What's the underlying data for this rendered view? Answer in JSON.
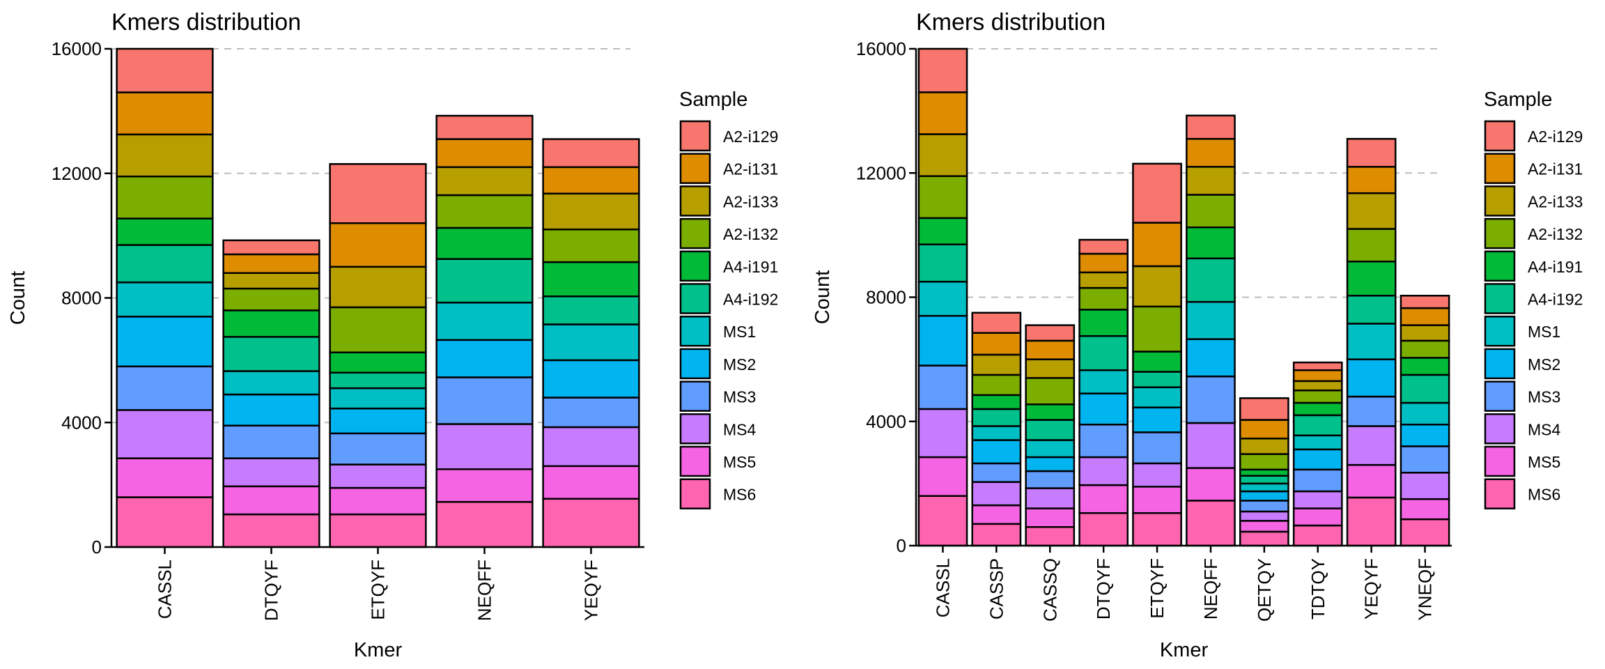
{
  "samples": [
    "A2-i129",
    "A2-i131",
    "A2-i133",
    "A2-i132",
    "A4-i191",
    "A4-i192",
    "MS1",
    "MS2",
    "MS3",
    "MS4",
    "MS5",
    "MS6"
  ],
  "colors": [
    "#F8766D",
    "#DE8C00",
    "#B79F00",
    "#7CAE00",
    "#00BA38",
    "#00C08B",
    "#00BFC4",
    "#00B4F0",
    "#619CFF",
    "#C77CFF",
    "#F564E3",
    "#FF64B0"
  ],
  "chart_data": [
    {
      "type": "bar",
      "stacked": true,
      "title": "Kmers distribution",
      "xlabel": "Kmer",
      "ylabel": "Count",
      "ylim": [
        0,
        16000
      ],
      "yticks": [
        0,
        4000,
        8000,
        12000,
        16000
      ],
      "legend_title": "Sample",
      "legend_position": "right",
      "categories": [
        "CASSL",
        "DTQYF",
        "ETQYF",
        "NEQFF",
        "YEQYF"
      ],
      "series": [
        {
          "name": "A2-i129",
          "values": [
            1400,
            450,
            1900,
            750,
            900
          ]
        },
        {
          "name": "A2-i131",
          "values": [
            1350,
            600,
            1400,
            900,
            850
          ]
        },
        {
          "name": "A2-i133",
          "values": [
            1350,
            500,
            1300,
            900,
            1150
          ]
        },
        {
          "name": "A2-i132",
          "values": [
            1350,
            700,
            1450,
            1050,
            1050
          ]
        },
        {
          "name": "A4-i191",
          "values": [
            850,
            850,
            650,
            1000,
            1100
          ]
        },
        {
          "name": "A4-i192",
          "values": [
            1200,
            1100,
            500,
            1400,
            900
          ]
        },
        {
          "name": "MS1",
          "values": [
            1100,
            750,
            650,
            1200,
            1150
          ]
        },
        {
          "name": "MS2",
          "values": [
            1600,
            1000,
            800,
            1200,
            1200
          ]
        },
        {
          "name": "MS3",
          "values": [
            1400,
            1050,
            1000,
            1500,
            950
          ]
        },
        {
          "name": "MS4",
          "values": [
            1550,
            900,
            750,
            1450,
            1250
          ]
        },
        {
          "name": "MS5",
          "values": [
            1250,
            900,
            850,
            1050,
            1050
          ]
        },
        {
          "name": "MS6",
          "values": [
            1600,
            1050,
            1050,
            1450,
            1550
          ]
        }
      ]
    },
    {
      "type": "bar",
      "stacked": true,
      "title": "Kmers distribution",
      "xlabel": "Kmer",
      "ylabel": "Count",
      "ylim": [
        0,
        16000
      ],
      "yticks": [
        0,
        4000,
        8000,
        12000,
        16000
      ],
      "legend_title": "Sample",
      "legend_position": "right",
      "categories": [
        "CASSL",
        "CASSP",
        "CASSQ",
        "DTQYF",
        "ETQYF",
        "NEQFF",
        "QETQY",
        "TDTQY",
        "YEQYF",
        "YNEQF"
      ],
      "series": [
        {
          "name": "A2-i129",
          "values": [
            1400,
            650,
            500,
            450,
            1900,
            750,
            700,
            250,
            900,
            400
          ]
        },
        {
          "name": "A2-i131",
          "values": [
            1350,
            700,
            600,
            600,
            1400,
            900,
            600,
            350,
            850,
            550
          ]
        },
        {
          "name": "A2-i133",
          "values": [
            1350,
            650,
            600,
            500,
            1300,
            900,
            500,
            300,
            1150,
            500
          ]
        },
        {
          "name": "A2-i132",
          "values": [
            1350,
            650,
            850,
            700,
            1450,
            1050,
            500,
            400,
            1050,
            550
          ]
        },
        {
          "name": "A4-i191",
          "values": [
            850,
            450,
            500,
            850,
            650,
            1000,
            200,
            400,
            1100,
            550
          ]
        },
        {
          "name": "A4-i192",
          "values": [
            1200,
            550,
            650,
            1100,
            500,
            1400,
            250,
            650,
            900,
            900
          ]
        },
        {
          "name": "MS1",
          "values": [
            1100,
            450,
            550,
            750,
            650,
            1200,
            250,
            450,
            1150,
            700
          ]
        },
        {
          "name": "MS2",
          "values": [
            1600,
            750,
            450,
            1000,
            800,
            1200,
            300,
            650,
            1200,
            700
          ]
        },
        {
          "name": "MS3",
          "values": [
            1400,
            600,
            550,
            1050,
            1000,
            1500,
            350,
            700,
            950,
            850
          ]
        },
        {
          "name": "MS4",
          "values": [
            1550,
            750,
            650,
            900,
            750,
            1450,
            300,
            550,
            1250,
            850
          ]
        },
        {
          "name": "MS5",
          "values": [
            1250,
            600,
            600,
            900,
            850,
            1050,
            350,
            550,
            1050,
            650
          ]
        },
        {
          "name": "MS6",
          "values": [
            1600,
            700,
            600,
            1050,
            1050,
            1450,
            450,
            650,
            1550,
            850
          ]
        }
      ]
    }
  ]
}
